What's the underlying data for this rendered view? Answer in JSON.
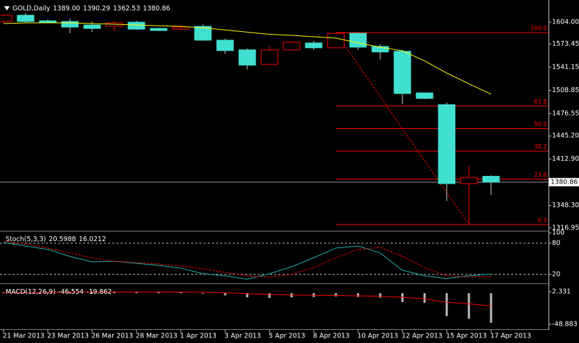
{
  "chart_data": [
    {
      "type": "candlestick",
      "title": "GOLD,Daily",
      "ohlc_labels": [
        "1389.00",
        "1390.29",
        "1362.53",
        "1380.86"
      ],
      "categories": [
        "21 Mar 2013",
        null,
        "23 Mar 2013",
        null,
        "26 Mar 2013",
        null,
        "28 Mar 2013",
        null,
        "1 Apr 2013",
        null,
        "3 Apr 2013",
        null,
        "5 Apr 2013",
        null,
        "8 Apr 2013",
        null,
        "10 Apr 2013",
        null,
        "12 Apr 2013",
        null,
        "15 Apr 2013",
        null,
        "17 Apr 2013"
      ],
      "open": [
        1604.9,
        1613.6,
        1605.8,
        1604.9,
        1600,
        1598.1,
        1603.9,
        1595.2,
        1594.2,
        1598.1,
        1578.8,
        1565.3,
        1545,
        1565.3,
        1574.9,
        1568.2,
        1588.4,
        1570.1,
        1563.3,
        1505.3,
        1488.9,
        1378.7,
        1389
      ],
      "high": [
        1615.5,
        1616.5,
        1607.8,
        1608.7,
        1604.9,
        1605.8,
        1605.8,
        1596.2,
        1600,
        1601,
        1580.7,
        1567.2,
        1570.1,
        1576.8,
        1577.8,
        1589.4,
        1589.4,
        1573,
        1565.3,
        1505.3,
        1491.8,
        1402.9,
        1390.29
      ],
      "low": [
        1603,
        1603,
        1603,
        1588.4,
        1590.4,
        1591.3,
        1593.3,
        1591.3,
        1592.3,
        1577.8,
        1559.5,
        1538.2,
        1544,
        1565.3,
        1565.3,
        1568.2,
        1565.3,
        1551.7,
        1489.9,
        1496.6,
        1354.6,
        1321.7,
        1362.53
      ],
      "close": [
        1613.6,
        1604.9,
        1603.9,
        1597.1,
        1595.2,
        1602.9,
        1594.2,
        1592.3,
        1597.1,
        1578.8,
        1564.3,
        1544,
        1565.3,
        1575.9,
        1568.2,
        1588.4,
        1569.1,
        1562.4,
        1504.4,
        1497.6,
        1378.7,
        1387.4,
        1380.86
      ],
      "up_color": "#ff0000",
      "down_color": "#40e0d0",
      "overlays": [
        {
          "color": "#ffff00",
          "values": [
            1602,
            1603,
            1603,
            1603,
            1602,
            1601,
            1600,
            1599,
            1598,
            1596,
            1593,
            1590,
            1587,
            1585.5,
            1583.6,
            1581.7,
            1575,
            1569,
            1564,
            1550,
            1533,
            1518,
            1503.5
          ]
        }
      ],
      "fib_levels": [
        {
          "value": 1589.4,
          "label": "100.0"
        },
        {
          "value": 1487.1,
          "label": "61.8"
        },
        {
          "value": 1455.6,
          "label": "50.0"
        },
        {
          "value": 1424.0,
          "label": "38.2"
        },
        {
          "value": 1384.9,
          "label": "23.6"
        },
        {
          "value": 1321.7,
          "label": "0.0"
        }
      ],
      "fib_color": "#ff0000",
      "last_price": 1380.86,
      "ylim": [
        1314,
        1630
      ],
      "yticks": [
        {
          "value": 1604,
          "label": "1604.00"
        },
        1573.45,
        1541.15,
        1508.85,
        1476.55,
        {
          "value": 1445.2,
          "label": "1445.20"
        },
        {
          "value": 1412.9,
          "label": "1412.90"
        },
        {
          "value": 1348.3,
          "label": "1348.30"
        },
        1316.95
      ]
    },
    {
      "type": "line",
      "title": "Stoch(5,3,3)",
      "readout": [
        20.5988,
        16.0212
      ],
      "series": [
        {
          "color": "#20b2aa",
          "dash": false,
          "values": [
            81.3,
            74.7,
            68,
            54.7,
            44,
            45.3,
            41.3,
            37.3,
            32,
            21.3,
            17.3,
            10.7,
            21.3,
            34.7,
            52,
            70.7,
            74.7,
            61.3,
            28,
            17.3,
            12,
            17.3,
            20.5988
          ]
        },
        {
          "color": "#ff0000",
          "dash": true,
          "values": [
            84,
            78.7,
            70.7,
            61.3,
            52,
            45.3,
            42.7,
            40,
            36,
            30.7,
            24,
            17.3,
            14.7,
            20,
            33.3,
            52,
            68,
            72,
            54.7,
            33.3,
            17.3,
            14.7,
            16.0212
          ]
        }
      ],
      "levels": [
        80,
        20
      ],
      "ylim": [
        0,
        100
      ],
      "yticks": [
        100,
        80,
        20
      ]
    },
    {
      "type": "bar",
      "title": "MACD(12,26,9)",
      "readout": [
        -46.554,
        -19.862
      ],
      "series": [
        {
          "style": "bar",
          "color": "#c0c0c0",
          "values": [
            1.5,
            2,
            2,
            2.3,
            2.5,
            2.5,
            2.3,
            2,
            1.5,
            -1,
            -3.5,
            -6.5,
            -7.5,
            -6.5,
            -6,
            -5,
            -6,
            -7,
            -14,
            -15,
            -36,
            -40,
            -46.554
          ]
        },
        {
          "style": "line",
          "color": "#ff0000",
          "values": [
            0.8,
            1,
            1.2,
            1.4,
            1.6,
            1.8,
            1.9,
            1.9,
            1.8,
            1.4,
            0.6,
            -0.8,
            -2,
            -2.8,
            -3.4,
            -3.7,
            -4.2,
            -4.8,
            -6.6,
            -8.9,
            -14.3,
            -16.8,
            -19.862
          ]
        }
      ],
      "ylim": [
        -56.5,
        12.1
      ],
      "yticks": [
        2.331,
        -48.883
      ]
    }
  ]
}
